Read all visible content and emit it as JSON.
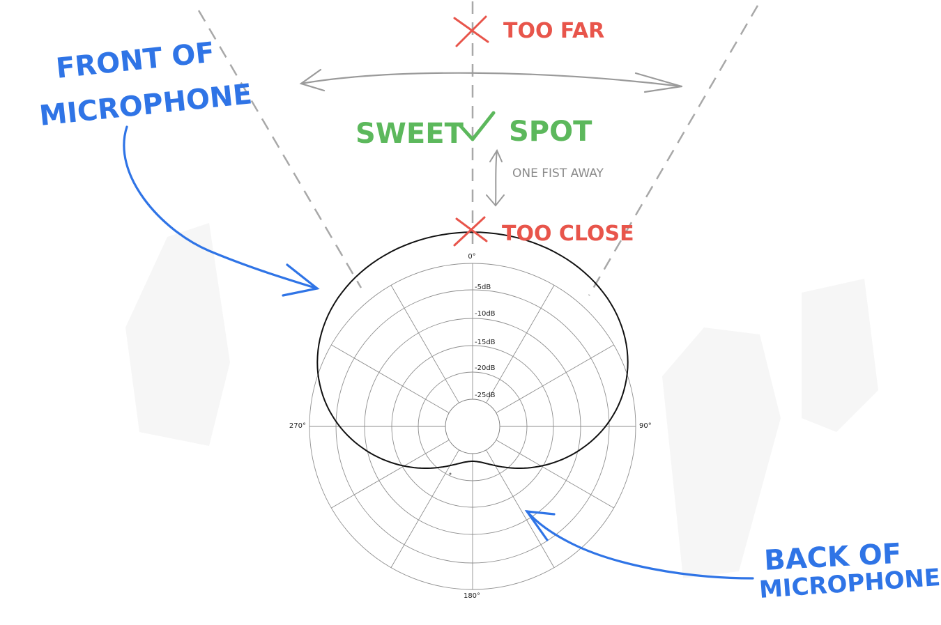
{
  "diagram": {
    "polar_labels": {
      "angle_0": "0°",
      "angle_90": "90°",
      "angle_180": "180°",
      "angle_270": "270°"
    },
    "ring_labels": [
      "-5dB",
      "-10dB",
      "-15dB",
      "-20dB",
      "-25dB"
    ],
    "annotations": {
      "front": [
        "FRONT OF",
        "MICROPHONE"
      ],
      "back": [
        "BACK OF",
        "MICROPHONE"
      ],
      "too_far": "TOO FAR",
      "sweet_spot_left": "SWEET",
      "sweet_spot_right": "SPOT",
      "one_fist": "ONE FIST AWAY",
      "too_close": "TOO CLOSE"
    },
    "colors": {
      "blue": "#2f74e6",
      "red": "#e8554b",
      "green": "#5cb85c",
      "gray": "#9a9a9a",
      "pattern": "#111111"
    }
  }
}
